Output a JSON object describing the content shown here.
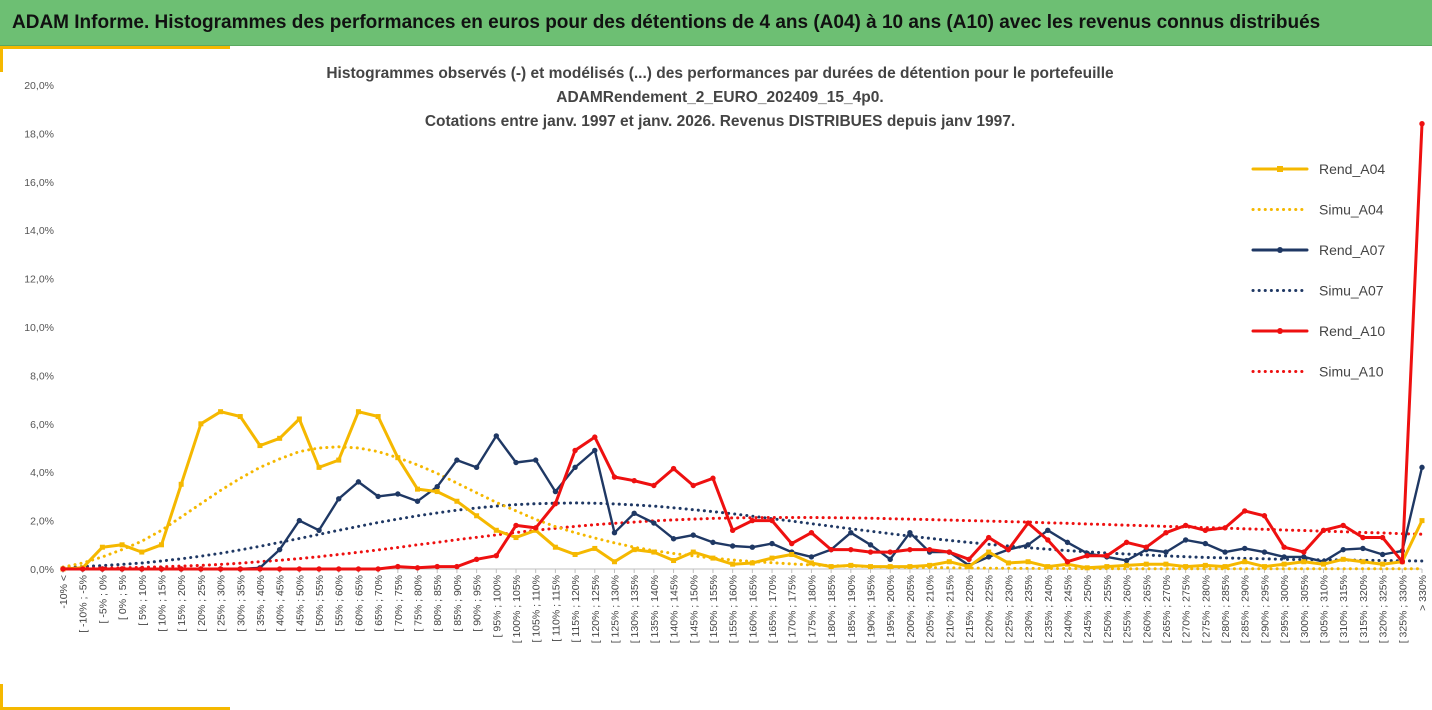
{
  "header": {
    "title": "ADAM Informe. Histogrammes des performances en euros pour des détentions de 4 ans (A04) à 10 ans (A10) avec les revenus connus distribués"
  },
  "chart_data": {
    "type": "line",
    "title_lines": [
      "Histogrammes observés (-) et modélisés (...) des performances par durées de détention pour le portefeuille",
      "ADAMRendement_2_EURO_202409_15_4p0.",
      "Cotations entre janv. 1997 et janv. 2026. Revenus DISTRIBUES depuis janv 1997."
    ],
    "ylim": [
      0,
      20
    ],
    "y_ticks": [
      0,
      2,
      4,
      6,
      8,
      10,
      12,
      14,
      16,
      18,
      20
    ],
    "y_tick_labels": [
      "0,0%",
      "2,0%",
      "4,0%",
      "6,0%",
      "8,0%",
      "10,0%",
      "12,0%",
      "14,0%",
      "16,0%",
      "18,0%",
      "20,0%"
    ],
    "categories": [
      "-10% <",
      "[ -10% ; -5%",
      "[ -5% ; 0%",
      "[ 0% ; 5%",
      "[ 5% ; 10%",
      "[ 10% ; 15%",
      "[ 15% ; 20%",
      "[ 20% ; 25%",
      "[ 25% ; 30%",
      "[ 30% ; 35%",
      "[ 35% ; 40%",
      "[ 40% ; 45%",
      "[ 45% ; 50%",
      "[ 50% ; 55%",
      "[ 55% ; 60%",
      "[ 60% ; 65%",
      "[ 65% ; 70%",
      "[ 70% ; 75%",
      "[ 75% ; 80%",
      "[ 80% ; 85%",
      "[ 85% ; 90%",
      "[ 90% ; 95%",
      "[ 95% ; 100%",
      "[ 100% ; 105%",
      "[ 105% ; 110%",
      "[ 110% ; 115%",
      "[ 115% ; 120%",
      "[ 120% ; 125%",
      "[ 125% ; 130%",
      "[ 130% ; 135%",
      "[ 135% ; 140%",
      "[ 140% ; 145%",
      "[ 145% ; 150%",
      "[ 150% ; 155%",
      "[ 155% ; 160%",
      "[ 160% ; 165%",
      "[ 165% ; 170%",
      "[ 170% ; 175%",
      "[ 175% ; 180%",
      "[ 180% ; 185%",
      "[ 185% ; 190%",
      "[ 190% ; 195%",
      "[ 195% ; 200%",
      "[ 200% ; 205%",
      "[ 205% ; 210%",
      "[ 210% ; 215%",
      "[ 215% ; 220%",
      "[ 220% ; 225%",
      "[ 225% ; 230%",
      "[ 230% ; 235%",
      "[ 235% ; 240%",
      "[ 240% ; 245%",
      "[ 245% ; 250%",
      "[ 250% ; 255%",
      "[ 255% ; 260%",
      "[ 260% ; 265%",
      "[ 265% ; 270%",
      "[ 270% ; 275%",
      "[ 275% ; 280%",
      "[ 280% ; 285%",
      "[ 285% ; 290%",
      "[ 290% ; 295%",
      "[ 295% ; 300%",
      "[ 300% ; 305%",
      "[ 305% ; 310%",
      "[ 310% ; 315%",
      "[ 315% ; 320%",
      "[ 320% ; 325%",
      "[ 325% ; 330%",
      "> 330%"
    ],
    "series": [
      {
        "name": "Rend_A04",
        "color": "#f5b800",
        "style": "solid",
        "values": [
          0.0,
          0.05,
          0.9,
          1.0,
          0.7,
          1.0,
          3.5,
          6.0,
          6.5,
          6.3,
          5.1,
          5.4,
          6.2,
          4.2,
          4.5,
          6.5,
          6.3,
          4.6,
          3.3,
          3.2,
          2.8,
          2.2,
          1.6,
          1.3,
          1.6,
          0.9,
          0.6,
          0.85,
          0.3,
          0.8,
          0.7,
          0.35,
          0.7,
          0.45,
          0.2,
          0.25,
          0.45,
          0.6,
          0.25,
          0.1,
          0.15,
          0.1,
          0.1,
          0.1,
          0.15,
          0.3,
          0.1,
          0.7,
          0.25,
          0.3,
          0.1,
          0.2,
          0.05,
          0.1,
          0.15,
          0.2,
          0.2,
          0.1,
          0.15,
          0.1,
          0.3,
          0.1,
          0.2,
          0.3,
          0.2,
          0.4,
          0.3,
          0.2,
          0.3,
          2.0
        ]
      },
      {
        "name": "Simu_A04",
        "color": "#f5b800",
        "style": "dotted",
        "values": [
          0.08,
          0.25,
          0.5,
          0.8,
          1.15,
          1.6,
          2.15,
          2.7,
          3.25,
          3.75,
          4.2,
          4.55,
          4.85,
          5.0,
          5.05,
          5.0,
          4.85,
          4.6,
          4.3,
          3.95,
          3.55,
          3.15,
          2.75,
          2.4,
          2.05,
          1.75,
          1.5,
          1.28,
          1.08,
          0.9,
          0.76,
          0.64,
          0.54,
          0.45,
          0.37,
          0.31,
          0.26,
          0.21,
          0.17,
          0.14,
          0.12,
          0.1,
          0.08,
          0.07,
          0.06,
          0.05,
          0.04,
          0.035,
          0.03,
          0.025,
          0.02,
          0.02,
          0.015,
          0.015,
          0.01,
          0.01,
          0.01,
          0.01,
          0.01,
          0.01,
          0.01,
          0.01,
          0.01,
          0.01,
          0.01,
          0.01,
          0.01,
          0.01,
          0.01,
          0.01
        ]
      },
      {
        "name": "Rend_A07",
        "color": "#1f3864",
        "style": "solid",
        "values": [
          0.0,
          0.0,
          0.0,
          0.0,
          0.0,
          0.0,
          0.0,
          0.0,
          0.0,
          0.0,
          0.05,
          0.8,
          2.0,
          1.6,
          2.9,
          3.6,
          3.0,
          3.1,
          2.8,
          3.4,
          4.5,
          4.2,
          5.5,
          4.4,
          4.5,
          3.2,
          4.2,
          4.9,
          1.5,
          2.3,
          1.9,
          1.25,
          1.4,
          1.1,
          0.95,
          0.9,
          1.05,
          0.7,
          0.5,
          0.8,
          1.5,
          1.0,
          0.4,
          1.5,
          0.7,
          0.7,
          0.15,
          0.5,
          0.8,
          1.0,
          1.6,
          1.1,
          0.65,
          0.5,
          0.35,
          0.8,
          0.7,
          1.2,
          1.05,
          0.7,
          0.85,
          0.7,
          0.5,
          0.5,
          0.3,
          0.8,
          0.85,
          0.6,
          0.75,
          4.2
        ]
      },
      {
        "name": "Simu_A07",
        "color": "#1f3864",
        "style": "dotted",
        "values": [
          0.07,
          0.1,
          0.14,
          0.19,
          0.25,
          0.33,
          0.42,
          0.53,
          0.65,
          0.79,
          0.94,
          1.1,
          1.26,
          1.43,
          1.6,
          1.76,
          1.92,
          2.06,
          2.2,
          2.32,
          2.43,
          2.52,
          2.6,
          2.66,
          2.7,
          2.72,
          2.73,
          2.72,
          2.69,
          2.65,
          2.6,
          2.53,
          2.45,
          2.37,
          2.28,
          2.18,
          2.08,
          1.98,
          1.87,
          1.77,
          1.66,
          1.56,
          1.46,
          1.36,
          1.27,
          1.18,
          1.1,
          1.02,
          0.95,
          0.88,
          0.82,
          0.76,
          0.71,
          0.66,
          0.62,
          0.58,
          0.54,
          0.51,
          0.48,
          0.46,
          0.44,
          0.42,
          0.4,
          0.39,
          0.38,
          0.37,
          0.36,
          0.35,
          0.34,
          0.33
        ]
      },
      {
        "name": "Rend_A10",
        "color": "#ee1010",
        "style": "solid",
        "values": [
          0.0,
          0.0,
          0.0,
          0.0,
          0.0,
          0.0,
          0.0,
          0.0,
          0.0,
          0.0,
          0.0,
          0.0,
          0.0,
          0.0,
          0.0,
          0.0,
          0.0,
          0.1,
          0.05,
          0.1,
          0.1,
          0.4,
          0.55,
          1.8,
          1.7,
          2.7,
          4.9,
          5.45,
          3.8,
          3.65,
          3.45,
          4.15,
          3.45,
          3.75,
          1.6,
          2.0,
          2.0,
          1.05,
          1.5,
          0.8,
          0.8,
          0.7,
          0.7,
          0.8,
          0.8,
          0.7,
          0.4,
          1.3,
          0.8,
          1.9,
          1.2,
          0.3,
          0.55,
          0.55,
          1.1,
          0.9,
          1.5,
          1.8,
          1.6,
          1.7,
          2.4,
          2.2,
          0.9,
          0.7,
          1.6,
          1.8,
          1.3,
          1.3,
          0.3,
          18.4
        ]
      },
      {
        "name": "Simu_A10",
        "color": "#ee1010",
        "style": "dotted",
        "values": [
          0.02,
          0.03,
          0.04,
          0.05,
          0.07,
          0.09,
          0.12,
          0.15,
          0.19,
          0.24,
          0.3,
          0.36,
          0.43,
          0.51,
          0.6,
          0.69,
          0.79,
          0.89,
          1.0,
          1.1,
          1.21,
          1.31,
          1.41,
          1.51,
          1.6,
          1.68,
          1.76,
          1.83,
          1.89,
          1.94,
          1.99,
          2.03,
          2.06,
          2.09,
          2.11,
          2.12,
          2.13,
          2.13,
          2.13,
          2.12,
          2.11,
          2.1,
          2.08,
          2.06,
          2.04,
          2.02,
          2.0,
          1.98,
          1.96,
          1.94,
          1.91,
          1.89,
          1.86,
          1.84,
          1.81,
          1.79,
          1.76,
          1.74,
          1.71,
          1.69,
          1.66,
          1.64,
          1.61,
          1.59,
          1.56,
          1.54,
          1.51,
          1.49,
          1.46,
          1.44
        ]
      }
    ],
    "legend_position": "right",
    "grid": false
  }
}
